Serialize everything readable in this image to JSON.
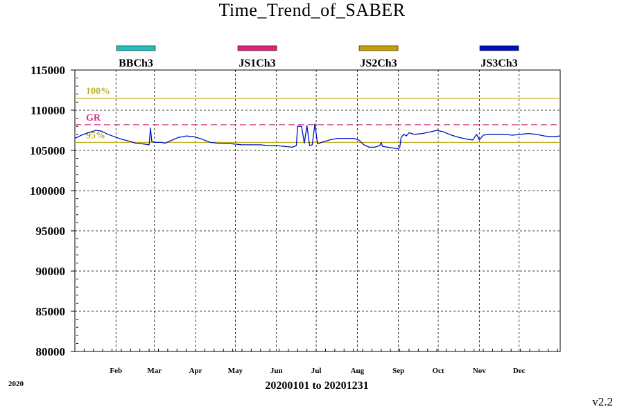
{
  "title": "Time_Trend_of_SABER",
  "year_label": "2020",
  "range_label": "20200101 to 20201231",
  "version": "v2.2",
  "chart_data": {
    "type": "line",
    "ylim": [
      80000,
      115000
    ],
    "y_ticks": [
      80000,
      85000,
      90000,
      95000,
      100000,
      105000,
      110000,
      115000
    ],
    "x_start_label": "20200101",
    "x_end_label": "20201231",
    "month_ticks": [
      {
        "label": "Feb",
        "day": 31
      },
      {
        "label": "Mar",
        "day": 60
      },
      {
        "label": "Apr",
        "day": 91
      },
      {
        "label": "May",
        "day": 121
      },
      {
        "label": "Jun",
        "day": 152
      },
      {
        "label": "Jul",
        "day": 182
      },
      {
        "label": "Aug",
        "day": 213
      },
      {
        "label": "Sep",
        "day": 244
      },
      {
        "label": "Oct",
        "day": 274
      },
      {
        "label": "Nov",
        "day": 305
      },
      {
        "label": "Dec",
        "day": 335
      }
    ],
    "grid": true,
    "legend_position": "top",
    "legend": [
      {
        "name": "BBCh3",
        "color": "#20c0c0"
      },
      {
        "name": "JS1Ch3",
        "color": "#e0207a"
      },
      {
        "name": "JS2Ch3",
        "color": "#c8a000"
      },
      {
        "name": "JS3Ch3",
        "color": "#0010c0"
      }
    ],
    "reference_lines": [
      {
        "label": "100%",
        "value": 111500,
        "color": "#c0b020",
        "style": "solid"
      },
      {
        "label": "GR",
        "value": 108200,
        "color": "#d03080",
        "style": "dashed"
      },
      {
        "label": "95%",
        "value": 106000,
        "color": "#c0b020",
        "style": "solid"
      }
    ],
    "series": [
      {
        "name": "JS3Ch3",
        "color": "#0010c0",
        "points": [
          [
            0,
            106500
          ],
          [
            5,
            106900
          ],
          [
            10,
            107200
          ],
          [
            16,
            107500
          ],
          [
            20,
            107400
          ],
          [
            25,
            107000
          ],
          [
            30,
            106700
          ],
          [
            35,
            106400
          ],
          [
            40,
            106200
          ],
          [
            46,
            105900
          ],
          [
            52,
            105800
          ],
          [
            56,
            105700
          ],
          [
            57,
            107800
          ],
          [
            58,
            106100
          ],
          [
            60,
            106000
          ],
          [
            65,
            106000
          ],
          [
            68,
            105900
          ],
          [
            72,
            106200
          ],
          [
            78,
            106600
          ],
          [
            84,
            106800
          ],
          [
            90,
            106700
          ],
          [
            96,
            106400
          ],
          [
            102,
            106000
          ],
          [
            108,
            105900
          ],
          [
            114,
            105900
          ],
          [
            120,
            105800
          ],
          [
            126,
            105700
          ],
          [
            132,
            105700
          ],
          [
            140,
            105700
          ],
          [
            146,
            105600
          ],
          [
            152,
            105600
          ],
          [
            158,
            105500
          ],
          [
            164,
            105400
          ],
          [
            167,
            105600
          ],
          [
            168,
            108000
          ],
          [
            171,
            108000
          ],
          [
            173,
            105900
          ],
          [
            175,
            108100
          ],
          [
            177,
            105600
          ],
          [
            179,
            105700
          ],
          [
            181,
            108300
          ],
          [
            183,
            105800
          ],
          [
            186,
            106000
          ],
          [
            192,
            106300
          ],
          [
            198,
            106500
          ],
          [
            204,
            106500
          ],
          [
            210,
            106500
          ],
          [
            214,
            106300
          ],
          [
            218,
            105700
          ],
          [
            222,
            105400
          ],
          [
            226,
            105400
          ],
          [
            230,
            105600
          ],
          [
            231,
            106000
          ],
          [
            232,
            105500
          ],
          [
            236,
            105400
          ],
          [
            240,
            105300
          ],
          [
            244,
            105200
          ],
          [
            245,
            105400
          ],
          [
            246,
            106600
          ],
          [
            248,
            107000
          ],
          [
            250,
            106800
          ],
          [
            252,
            107200
          ],
          [
            256,
            107000
          ],
          [
            262,
            107100
          ],
          [
            268,
            107300
          ],
          [
            273,
            107500
          ],
          [
            278,
            107300
          ],
          [
            284,
            106900
          ],
          [
            290,
            106600
          ],
          [
            296,
            106400
          ],
          [
            300,
            106300
          ],
          [
            303,
            107000
          ],
          [
            305,
            106300
          ],
          [
            308,
            106900
          ],
          [
            312,
            107000
          ],
          [
            318,
            107000
          ],
          [
            324,
            107000
          ],
          [
            330,
            106900
          ],
          [
            336,
            107000
          ],
          [
            342,
            107100
          ],
          [
            348,
            107000
          ],
          [
            354,
            106800
          ],
          [
            360,
            106700
          ],
          [
            366,
            106800
          ]
        ]
      }
    ]
  }
}
